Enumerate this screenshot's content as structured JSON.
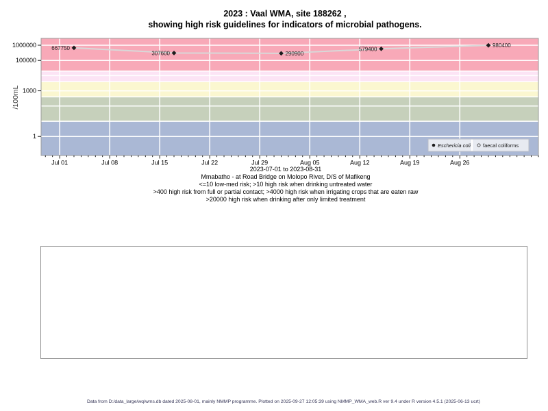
{
  "title": {
    "line1": "2023 : Vaal WMA, site 188262 ,",
    "line2": "showing high risk guidelines for indicators of microbial pathogens."
  },
  "caption": {
    "date_range": "2023-07-01 to 2023-08-31",
    "site": "Mmabatho - at Road Bridge on Molopo River, D/S of Mafikeng",
    "guideline1": "<=10 low-med risk; >10 high risk when drinking untreated water",
    "guideline2": ">400 high risk from full or partial contact; >4000 high risk when irrigating crops that are eaten raw",
    "guideline3": ">20000 high risk when drinking after only limited treatment"
  },
  "footer": {
    "text": "Data from D:/data_large/wq/wms.db dated 2025-08-01, mainly NMMP programme. Plotted on 2025-09-27 12:05:39 using NMMP_WMA_web.R ver 9.4 under R version 4.5.1 (2025-06-13 ucrt)"
  },
  "chart_data": {
    "type": "scatter",
    "ylabel": "/100mL",
    "y_axis": {
      "scale": "log10",
      "range": [
        0.056,
        2820000
      ],
      "ticks": [
        {
          "value": 1000000,
          "label": "1000000"
        },
        {
          "value": 100000,
          "label": "100000"
        },
        {
          "value": 1000,
          "label": "1000"
        },
        {
          "value": 1,
          "label": "1"
        }
      ],
      "gridline_decades": [
        0,
        1,
        2,
        3,
        4,
        5,
        6
      ]
    },
    "x_axis": {
      "start_date": "2023-07-01",
      "end_date": "2023-08-31",
      "range_days": [
        -2.6,
        67.0
      ],
      "ticks": [
        {
          "label": "Jul 01",
          "day": 0
        },
        {
          "label": "Jul 08",
          "day": 7
        },
        {
          "label": "Jul 15",
          "day": 14
        },
        {
          "label": "Jul 22",
          "day": 21
        },
        {
          "label": "Jul 29",
          "day": 28
        },
        {
          "label": "Aug 05",
          "day": 35
        },
        {
          "label": "Aug 12",
          "day": 42
        },
        {
          "label": "Aug 19",
          "day": 49
        },
        {
          "label": "Aug 26",
          "day": 56
        }
      ]
    },
    "risk_bands": [
      {
        "min": 20000,
        "max": null,
        "color": "#f8a9b8"
      },
      {
        "min": 4000,
        "max": 20000,
        "color": "#fce4f5"
      },
      {
        "min": 400,
        "max": 4000,
        "color": "#fbf7d0"
      },
      {
        "min": 10,
        "max": 400,
        "color": "#c6d0bb"
      },
      {
        "min": null,
        "max": 10,
        "color": "#aab8d5"
      }
    ],
    "series": [
      {
        "name": "Eschericia coli",
        "marker": "filled-diamond",
        "points": [
          {
            "date": "2023-07-03",
            "day": 2,
            "value": 667750,
            "label": "667750",
            "label_side": "left"
          },
          {
            "date": "2023-07-17",
            "day": 16,
            "value": 307600,
            "label": "307600",
            "label_side": "left"
          },
          {
            "date": "2023-08-01",
            "day": 31,
            "value": 290900,
            "label": "290900",
            "label_side": "right"
          },
          {
            "date": "2023-08-15",
            "day": 45,
            "value": 579400,
            "label": "579400",
            "label_side": "left"
          },
          {
            "date": "2023-08-30",
            "day": 60,
            "value": 980400,
            "label": "980400",
            "label_side": "right"
          }
        ]
      },
      {
        "name": "faecal coliforms",
        "marker": "open-circle",
        "points": []
      }
    ],
    "legend": {
      "entries": [
        {
          "marker": "filled-circle",
          "label": "Eschericia coli",
          "italic": true
        },
        {
          "marker": "open-circle",
          "label": "faecal coliforms",
          "italic": false
        }
      ]
    },
    "colors": {
      "gridline": "#ffffff",
      "plot_border": "#9b9b9b",
      "data_line": "#d8d8d8",
      "point": "#1c1c1c",
      "legend_bg": "#e7eaf1",
      "legend_border": "#b9bdc6"
    }
  }
}
